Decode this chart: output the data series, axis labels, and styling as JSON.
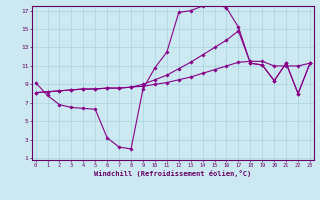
{
  "bg_color": "#cce8f0",
  "grid_color": "#a8d4e0",
  "line_color": "#880088",
  "text_color": "#660066",
  "xlabel": "Windchill (Refroidissement éolien,°C)",
  "xlim_min": 0,
  "xlim_max": 23,
  "ylim_min": 1,
  "ylim_max": 17,
  "xticks": [
    0,
    1,
    2,
    3,
    4,
    5,
    6,
    7,
    8,
    9,
    10,
    11,
    12,
    13,
    14,
    15,
    16,
    17,
    18,
    19,
    20,
    21,
    22,
    23
  ],
  "yticks": [
    1,
    3,
    5,
    7,
    9,
    11,
    13,
    15,
    17
  ],
  "line1_y": [
    9.2,
    7.8,
    6.8,
    6.5,
    6.4,
    6.3,
    3.2,
    2.2,
    2.0,
    8.5,
    10.8,
    12.5,
    16.8,
    17.0,
    17.5,
    17.8,
    17.3,
    15.2,
    11.3,
    11.1,
    9.4,
    11.3,
    8.0,
    11.3
  ],
  "line2_y": [
    8.1,
    8.2,
    8.3,
    8.4,
    8.5,
    8.5,
    8.6,
    8.6,
    8.7,
    8.8,
    9.0,
    9.2,
    9.5,
    9.8,
    10.2,
    10.6,
    11.0,
    11.4,
    11.5,
    11.5,
    11.0,
    11.0,
    11.0,
    11.3
  ],
  "line3_y": [
    8.1,
    8.2,
    8.3,
    8.4,
    8.5,
    8.5,
    8.6,
    8.6,
    8.7,
    9.0,
    9.5,
    10.0,
    10.7,
    11.4,
    12.2,
    13.0,
    13.8,
    14.8,
    11.3,
    11.1,
    9.4,
    11.3,
    8.0,
    11.3
  ]
}
